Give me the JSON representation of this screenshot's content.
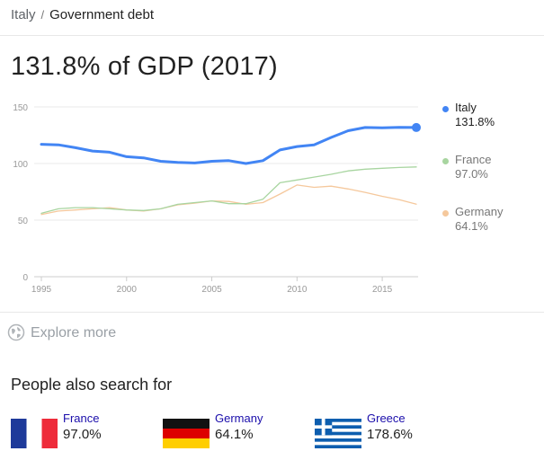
{
  "breadcrumb": {
    "country": "Italy",
    "separator": "/",
    "topic": "Government debt"
  },
  "headline": "131.8% of GDP (2017)",
  "chart_data": {
    "type": "line",
    "title": "",
    "xlabel": "",
    "ylabel": "",
    "xlim": [
      1995,
      2017
    ],
    "ylim": [
      0,
      150
    ],
    "x_ticks": [
      1995,
      2000,
      2005,
      2010,
      2015
    ],
    "y_ticks": [
      0,
      50,
      100,
      150
    ],
    "grid": true,
    "legend_position": "right",
    "x": [
      1995,
      1996,
      1997,
      1998,
      1999,
      2000,
      2001,
      2002,
      2003,
      2004,
      2005,
      2006,
      2007,
      2008,
      2009,
      2010,
      2011,
      2012,
      2013,
      2014,
      2015,
      2016,
      2017
    ],
    "series": [
      {
        "name": "Italy",
        "value_label": "131.8%",
        "color": "#4285f4",
        "values": [
          117,
          116.5,
          114,
          111,
          110,
          106,
          105,
          102,
          101,
          100.5,
          102,
          102.5,
          100,
          102.5,
          112,
          115,
          116.5,
          123,
          129,
          131.8,
          131.5,
          132,
          131.8
        ]
      },
      {
        "name": "France",
        "value_label": "97.0%",
        "color": "#a8d5a0",
        "values": [
          56,
          60,
          61,
          61,
          60,
          59,
          58.5,
          60,
          64,
          65.5,
          67,
          64.5,
          64.5,
          68.5,
          83,
          85.5,
          88,
          90.5,
          93.5,
          95,
          95.8,
          96.5,
          97.0
        ]
      },
      {
        "name": "Germany",
        "value_label": "64.1%",
        "color": "#f5c89c",
        "values": [
          55,
          58,
          59,
          60,
          61,
          59,
          58,
          60,
          63.5,
          65,
          67,
          66.5,
          64,
          65.5,
          73,
          81,
          79,
          80,
          77.5,
          74.5,
          71,
          68,
          64.1
        ]
      }
    ]
  },
  "explore": {
    "label": "Explore more",
    "icon": "globe-icon"
  },
  "people_also_search": {
    "title": "People also search for",
    "items": [
      {
        "name": "France",
        "value": "97.0%",
        "flag": "france-flag"
      },
      {
        "name": "Germany",
        "value": "64.1%",
        "flag": "germany-flag"
      },
      {
        "name": "Greece",
        "value": "178.6%",
        "flag": "greece-flag"
      }
    ]
  },
  "colors": {
    "link": "#1a0dab",
    "muted": "#9aa0a6",
    "grid": "#e8e8e8"
  }
}
